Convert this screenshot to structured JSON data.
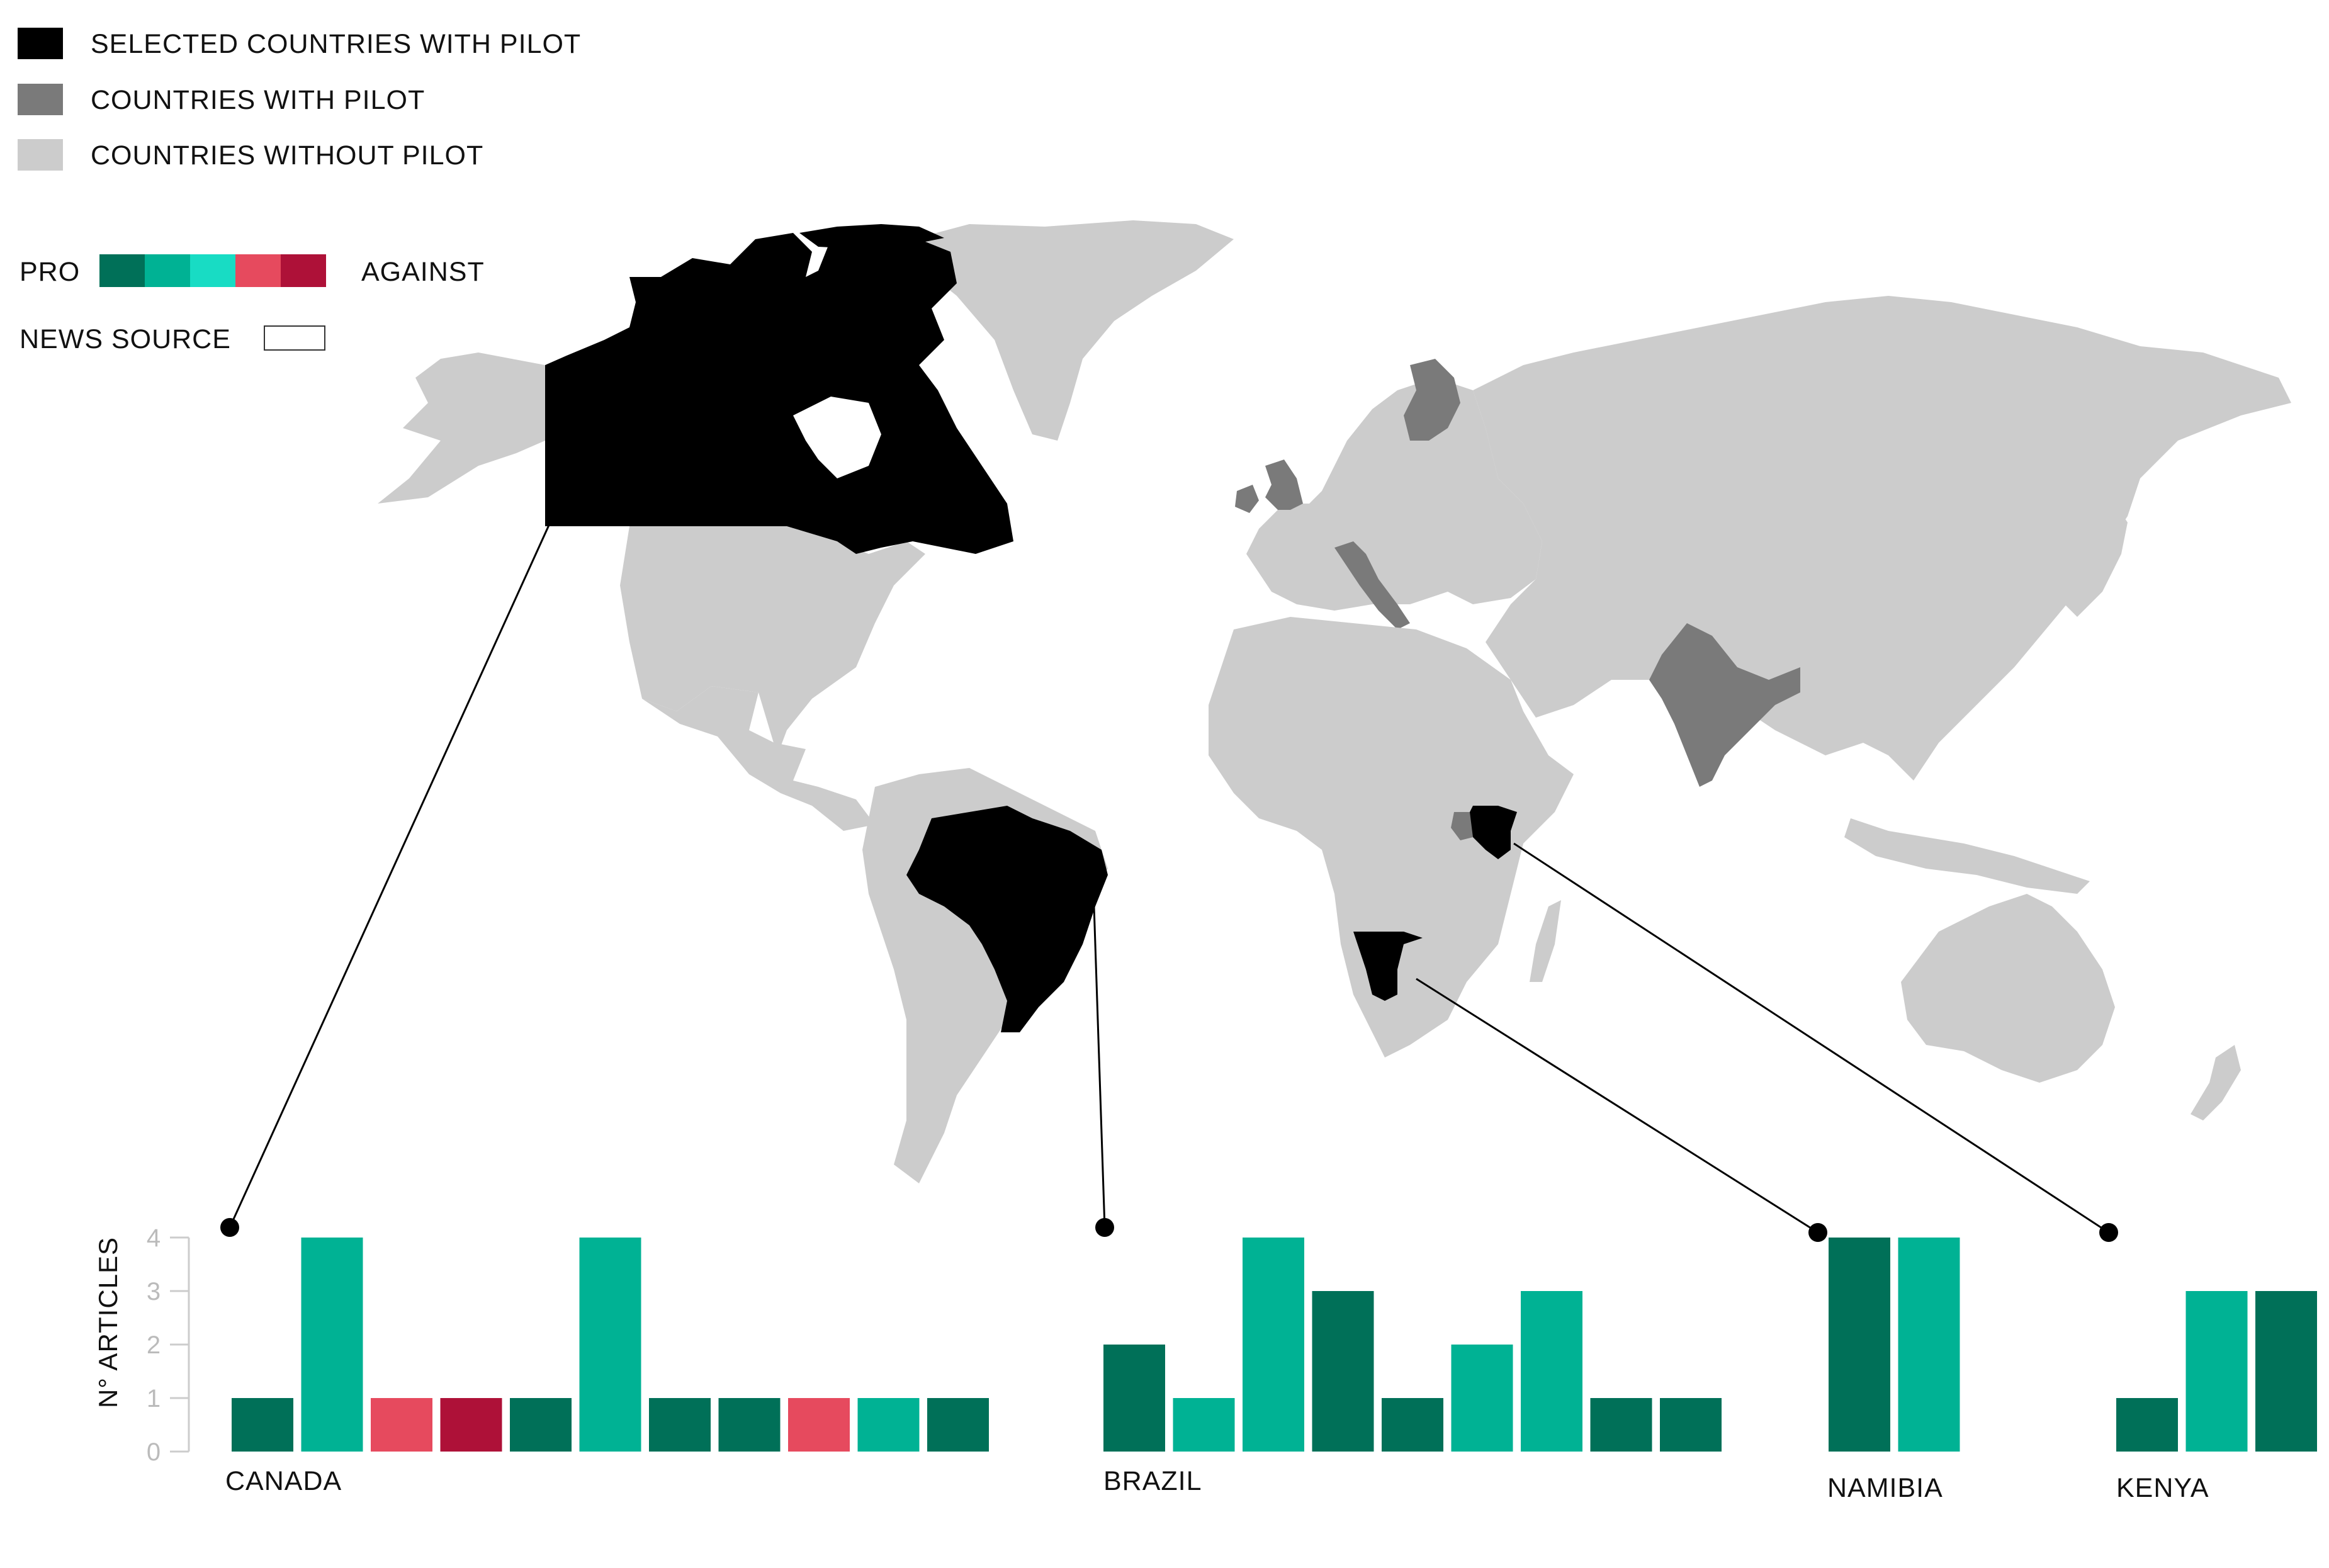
{
  "legend": {
    "categories": [
      {
        "label": "SELECTED COUNTRIES WITH PILOT",
        "color": "#000000"
      },
      {
        "label": "COUNTRIES WITH PILOT",
        "color": "#7a7a7a"
      },
      {
        "label": "COUNTRIES WITHOUT PILOT",
        "color": "#cccccc"
      }
    ],
    "scale_left": "PRO",
    "scale_right": "AGAINST",
    "scale_colors": [
      "#007058",
      "#00b294",
      "#18dcc4",
      "#e64a5e",
      "#ae1138"
    ],
    "news_source_label": "NEWS SOURCE"
  },
  "colors": {
    "selected": "#000000",
    "pilot": "#7a7a7a",
    "no_pilot": "#cccccc",
    "axis": "#cccccc"
  },
  "chart_data": {
    "type": "bar",
    "ylabel": "N° ARTICLES",
    "ylim": [
      0,
      4
    ],
    "yticks": [
      0,
      1,
      2,
      3,
      4
    ],
    "groups": [
      {
        "name": "CANADA",
        "values": [
          1,
          4,
          1,
          1,
          1,
          4,
          1,
          1,
          1,
          1,
          1
        ],
        "stance": [
          1,
          2,
          4,
          5,
          1,
          2,
          1,
          1,
          4,
          2,
          1
        ]
      },
      {
        "name": "BRAZIL",
        "values": [
          2,
          1,
          4,
          3,
          1,
          2,
          3,
          1,
          1
        ],
        "stance": [
          1,
          2,
          2,
          1,
          1,
          2,
          2,
          1,
          1
        ]
      },
      {
        "name": "NAMIBIA",
        "values": [
          4,
          4
        ],
        "stance": [
          1,
          2
        ]
      },
      {
        "name": "KENYA",
        "values": [
          1,
          3,
          3
        ],
        "stance": [
          1,
          2,
          1
        ]
      }
    ]
  }
}
